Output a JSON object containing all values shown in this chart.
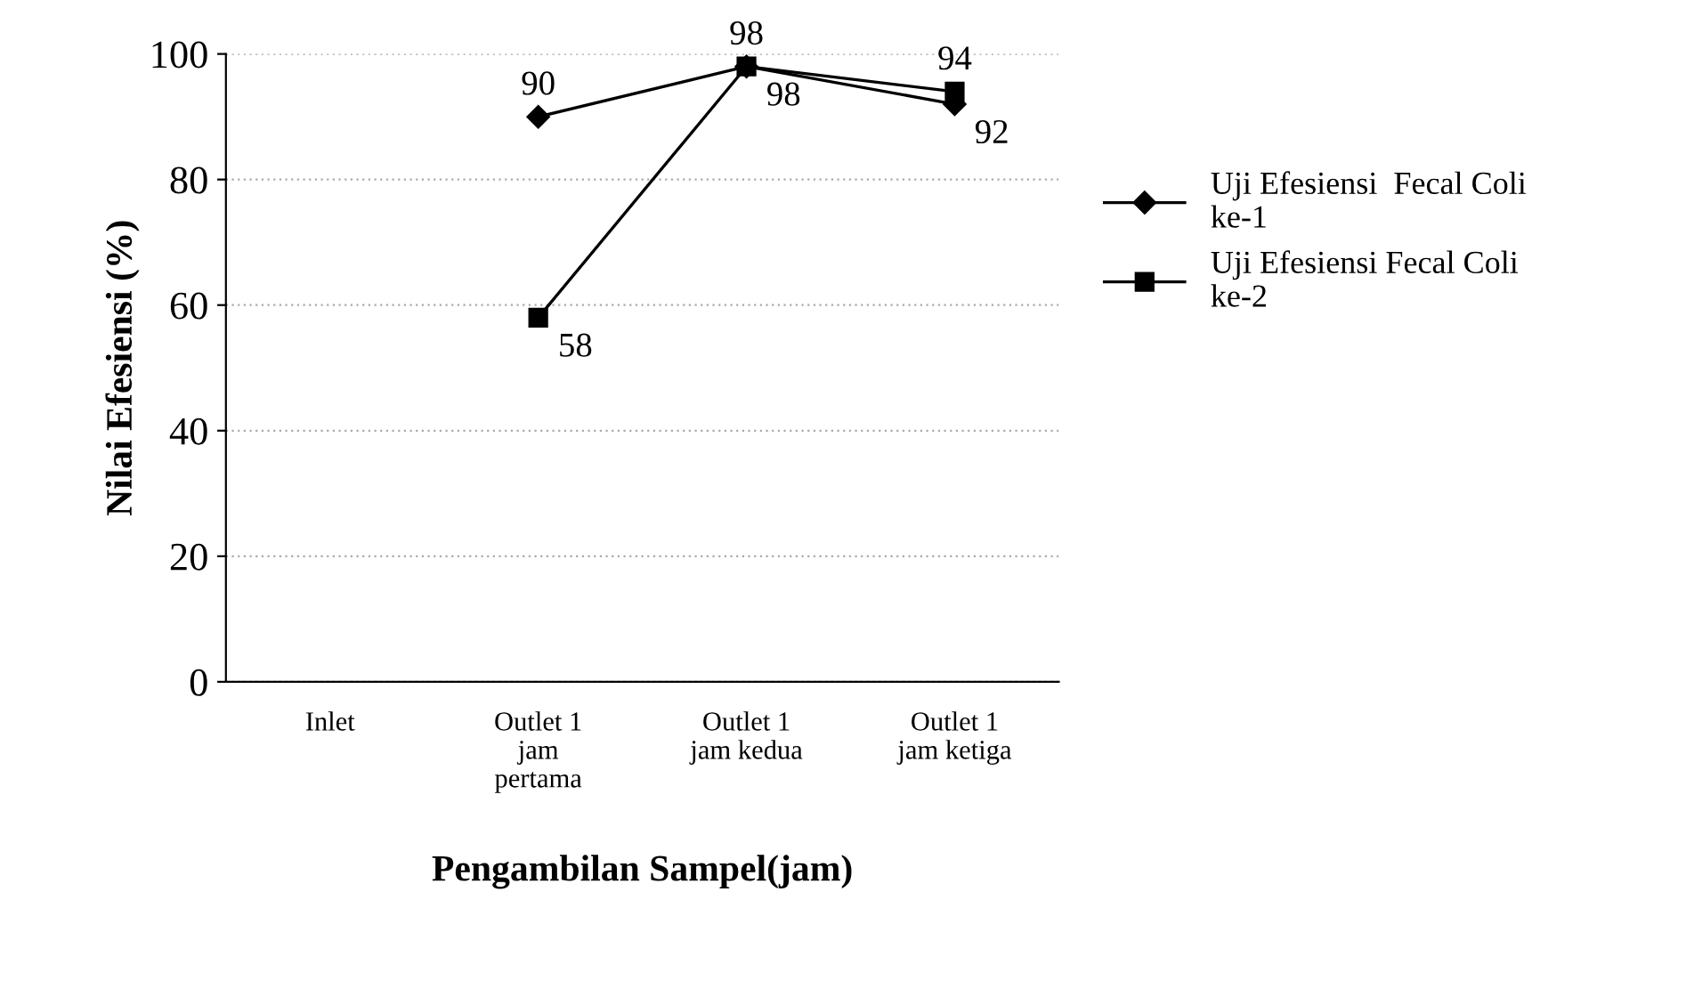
{
  "chart_data": {
    "type": "line",
    "xlabel": "Pengambilan Sampel(jam)",
    "ylabel": "Nilai Efesiensi (%)",
    "categories": [
      "Inlet",
      "Outlet 1\njam\npertama",
      "Outlet 1\njam kedua",
      "Outlet 1\njam ketiga"
    ],
    "series": [
      {
        "name": "Uji Efesiensi  Fecal Coli\nke-1",
        "color": "#000000",
        "marker": "diamond",
        "values": [
          null,
          90,
          98,
          92
        ]
      },
      {
        "name": "Uji Efesiensi Fecal Coli\nke-2",
        "color": "#000000",
        "marker": "square",
        "values": [
          null,
          58,
          98,
          94
        ]
      }
    ],
    "ylim": [
      0,
      100
    ],
    "yticks": [
      0,
      20,
      40,
      60,
      80,
      100
    ],
    "grid": "y",
    "legend": "right",
    "data_labels": true,
    "line_style": "solid"
  }
}
